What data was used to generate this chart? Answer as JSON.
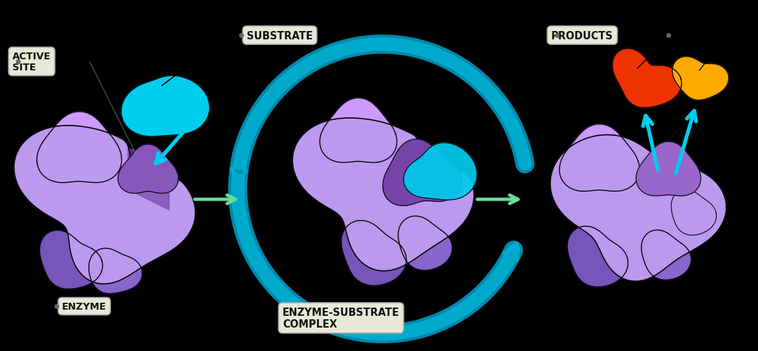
{
  "background_color": "#000000",
  "enzyme_light": "#b088e8",
  "enzyme_mid": "#9966cc",
  "enzyme_dark": "#6633aa",
  "enzyme_darker": "#5522aa",
  "substrate_color": "#00ccee",
  "product1_color": "#ee3300",
  "product2_color": "#ffaa00",
  "arrow_teal": "#0099bb",
  "arrow_teal2": "#00bbdd",
  "step_arrow_color": "#66dd99",
  "label_bg": "#e8e8d8",
  "label_text": "#111111",
  "labels": {
    "active_site": "ACTIVE\nSITE",
    "substrate": "SUBSTRATE",
    "enzyme": "ENZYME",
    "complex": "ENZYME-SUBSTRATE\nCOMPLEX",
    "products": "PRODUCTS"
  }
}
